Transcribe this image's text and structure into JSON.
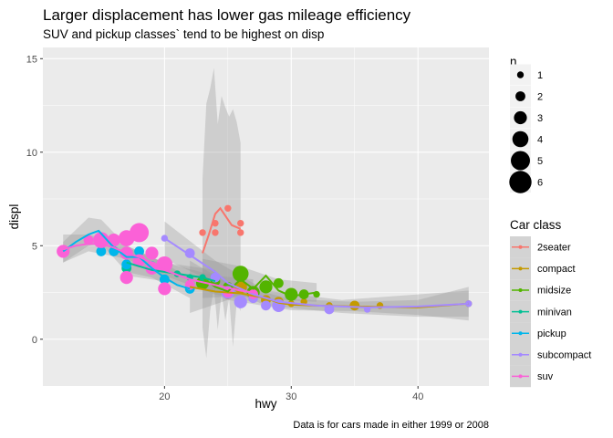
{
  "chart_data": {
    "type": "scatter",
    "title": "Larger displacement has lower gas mileage efficiency",
    "subtitle": "SUV and pickup classes` tend to be highest on disp",
    "caption": "Data is for cars made in either 1999 or 2008",
    "xlabel": "hwy",
    "ylabel": "displ",
    "xlim": [
      10.4,
      45.6
    ],
    "ylim": [
      -2.5,
      15.6
    ],
    "xticks": [
      20,
      30,
      40
    ],
    "yticks": [
      0,
      5,
      10,
      15
    ],
    "grid": true,
    "size_legend": {
      "title": "n",
      "values": [
        1,
        2,
        3,
        4,
        5,
        6
      ]
    },
    "color_legend": {
      "title": "Car class",
      "placement": "right"
    },
    "series": [
      {
        "name": "2seater",
        "color": "#F8766D",
        "points": [
          [
            23,
            5.7,
            1
          ],
          [
            24,
            5.7,
            1
          ],
          [
            24,
            6.2,
            1
          ],
          [
            25,
            7.0,
            1
          ],
          [
            26,
            6.2,
            1
          ],
          [
            26,
            5.7,
            1
          ]
        ],
        "smooth": [
          [
            23,
            4.6
          ],
          [
            23.5,
            5.6
          ],
          [
            24,
            6.7
          ],
          [
            24.4,
            7.0
          ],
          [
            24.8,
            6.6
          ],
          [
            25.3,
            6.1
          ],
          [
            26,
            5.9
          ]
        ],
        "band": [
          [
            23,
            0.6,
            8.6
          ],
          [
            23.3,
            -1.0,
            12.6
          ],
          [
            23.6,
            1.5,
            13.4
          ],
          [
            23.9,
            2.8,
            14.5
          ],
          [
            24.2,
            0.5,
            11.5
          ],
          [
            24.5,
            2.5,
            13.0
          ],
          [
            24.8,
            1.0,
            12.4
          ],
          [
            25.1,
            2.2,
            11.9
          ],
          [
            25.4,
            -0.4,
            12.3
          ],
          [
            25.7,
            2.0,
            11.6
          ],
          [
            26,
            1.5,
            10.5
          ]
        ]
      },
      {
        "name": "compact",
        "color": "#C49A00",
        "points": [
          [
            25,
            2.4,
            2
          ],
          [
            26,
            2.8,
            3
          ],
          [
            27,
            2.5,
            2
          ],
          [
            28,
            2.1,
            2
          ],
          [
            29,
            2.0,
            2
          ],
          [
            30,
            1.9,
            1
          ],
          [
            31,
            2.0,
            1
          ],
          [
            33,
            1.8,
            1
          ],
          [
            35,
            1.8,
            2
          ],
          [
            37,
            1.8,
            1
          ],
          [
            44,
            1.9,
            1
          ]
        ],
        "smooth": [
          [
            22,
            2.8
          ],
          [
            24,
            2.55
          ],
          [
            26,
            2.45
          ],
          [
            28,
            2.2
          ],
          [
            29,
            1.95
          ],
          [
            30,
            1.85
          ],
          [
            32,
            1.8
          ],
          [
            35,
            1.75
          ],
          [
            40,
            1.7
          ],
          [
            44,
            1.9
          ]
        ],
        "band": [
          [
            22,
            1.4,
            4.2
          ],
          [
            25,
            2.1,
            3.0
          ],
          [
            30,
            1.55,
            2.15
          ],
          [
            35,
            1.5,
            2.0
          ],
          [
            40,
            1.3,
            2.1
          ],
          [
            44,
            1.0,
            2.8
          ]
        ]
      },
      {
        "name": "midsize",
        "color": "#53B400",
        "points": [
          [
            23,
            3.0,
            3
          ],
          [
            24,
            3.1,
            2
          ],
          [
            25,
            2.8,
            2
          ],
          [
            26,
            3.5,
            4
          ],
          [
            27,
            2.5,
            3
          ],
          [
            28,
            2.8,
            3
          ],
          [
            29,
            3.0,
            2
          ],
          [
            30,
            2.4,
            3
          ],
          [
            31,
            2.4,
            2
          ],
          [
            32,
            2.4,
            1
          ]
        ],
        "smooth": [
          [
            23,
            3.3
          ],
          [
            24,
            2.8
          ],
          [
            25,
            2.55
          ],
          [
            26,
            3.2
          ],
          [
            27,
            2.7
          ],
          [
            28,
            3.4
          ],
          [
            29,
            2.6
          ],
          [
            30,
            2.3
          ],
          [
            31,
            2.4
          ],
          [
            32,
            2.5
          ]
        ],
        "band": [
          [
            23,
            2.2,
            4.3
          ],
          [
            26,
            2.3,
            3.9
          ],
          [
            29,
            2.1,
            3.2
          ],
          [
            32,
            2.0,
            3.0
          ]
        ]
      },
      {
        "name": "minivan",
        "color": "#00C094",
        "points": [
          [
            17,
            3.8,
            2
          ],
          [
            21,
            3.5,
            1
          ],
          [
            22,
            3.3,
            1
          ],
          [
            23,
            3.3,
            1
          ],
          [
            24,
            3.3,
            2
          ]
        ],
        "smooth": [
          [
            17,
            4.1
          ],
          [
            19,
            3.7
          ],
          [
            21,
            3.5
          ],
          [
            23,
            3.3
          ],
          [
            24,
            3.1
          ]
        ],
        "band": [
          [
            17,
            3.4,
            4.9
          ],
          [
            20,
            3.1,
            4.1
          ],
          [
            24,
            2.5,
            3.7
          ]
        ]
      },
      {
        "name": "pickup",
        "color": "#00B6EB",
        "points": [
          [
            12,
            4.7,
            2
          ],
          [
            15,
            4.7,
            2
          ],
          [
            16,
            4.7,
            2
          ],
          [
            17,
            4.0,
            2
          ],
          [
            18,
            4.7,
            2
          ],
          [
            19,
            3.9,
            2
          ],
          [
            20,
            3.2,
            2
          ],
          [
            22,
            2.7,
            2
          ]
        ],
        "smooth": [
          [
            12,
            4.7
          ],
          [
            13,
            5.2
          ],
          [
            14,
            5.6
          ],
          [
            14.8,
            5.8
          ],
          [
            16,
            4.9
          ],
          [
            17,
            4.4
          ],
          [
            18,
            4.4
          ],
          [
            19,
            3.8
          ],
          [
            20,
            3.3
          ],
          [
            21,
            2.9
          ],
          [
            22,
            2.7
          ]
        ],
        "band": [
          [
            12,
            4.1,
            5.2
          ],
          [
            14,
            5.0,
            6.5
          ],
          [
            15,
            5.1,
            6.4
          ],
          [
            17,
            3.6,
            5.0
          ],
          [
            19,
            3.3,
            4.4
          ],
          [
            22,
            2.2,
            3.3
          ]
        ]
      },
      {
        "name": "subcompact",
        "color": "#A58AFF",
        "points": [
          [
            20,
            5.4,
            1
          ],
          [
            22,
            4.6,
            2
          ],
          [
            24,
            3.3,
            2
          ],
          [
            25,
            2.5,
            3
          ],
          [
            26,
            2.0,
            3
          ],
          [
            27,
            2.2,
            2
          ],
          [
            28,
            1.8,
            2
          ],
          [
            29,
            1.8,
            3
          ],
          [
            33,
            1.6,
            2
          ],
          [
            36,
            1.6,
            1
          ],
          [
            44,
            1.9,
            1
          ]
        ],
        "smooth": [
          [
            20,
            5.4
          ],
          [
            22,
            4.5
          ],
          [
            24,
            3.6
          ],
          [
            25,
            3.0
          ],
          [
            26,
            2.7
          ],
          [
            27,
            2.4
          ],
          [
            29,
            2.0
          ],
          [
            32,
            1.8
          ],
          [
            36,
            1.7
          ],
          [
            40,
            1.75
          ],
          [
            44,
            1.9
          ]
        ],
        "band": [
          [
            20,
            4.3,
            6.3
          ],
          [
            24,
            3.0,
            4.2
          ],
          [
            28,
            1.8,
            2.6
          ],
          [
            34,
            1.4,
            2.1
          ],
          [
            40,
            1.2,
            2.4
          ],
          [
            44,
            1.2,
            2.6
          ]
        ]
      },
      {
        "name": "suv",
        "color": "#FB61D7",
        "points": [
          [
            12,
            4.7,
            3
          ],
          [
            14,
            5.3,
            2
          ],
          [
            15,
            5.3,
            4
          ],
          [
            16,
            5.3,
            3
          ],
          [
            17,
            5.4,
            4
          ],
          [
            17,
            4.6,
            3
          ],
          [
            17,
            3.3,
            3
          ],
          [
            18,
            5.7,
            5
          ],
          [
            18,
            4.2,
            3
          ],
          [
            19,
            4.6,
            3
          ],
          [
            19,
            3.8,
            3
          ],
          [
            20,
            4.0,
            4
          ],
          [
            20,
            2.7,
            3
          ],
          [
            22,
            2.9,
            2
          ],
          [
            25,
            2.5,
            2
          ],
          [
            27,
            2.4,
            2
          ]
        ],
        "smooth": [
          [
            12,
            4.8
          ],
          [
            13,
            5.0
          ],
          [
            14,
            5.1
          ],
          [
            15,
            5.1
          ],
          [
            16,
            4.9
          ],
          [
            17,
            4.6
          ],
          [
            18,
            4.4
          ],
          [
            19,
            4.1
          ],
          [
            20,
            3.7
          ],
          [
            22,
            3.2
          ],
          [
            24,
            2.9
          ],
          [
            26,
            2.6
          ],
          [
            27,
            2.5
          ]
        ],
        "band": [
          [
            12,
            4.1,
            5.6
          ],
          [
            14,
            4.7,
            5.6
          ],
          [
            17,
            4.3,
            5.0
          ],
          [
            20,
            3.4,
            4.1
          ],
          [
            24,
            2.4,
            3.4
          ],
          [
            27,
            2.0,
            3.2
          ]
        ]
      }
    ]
  }
}
